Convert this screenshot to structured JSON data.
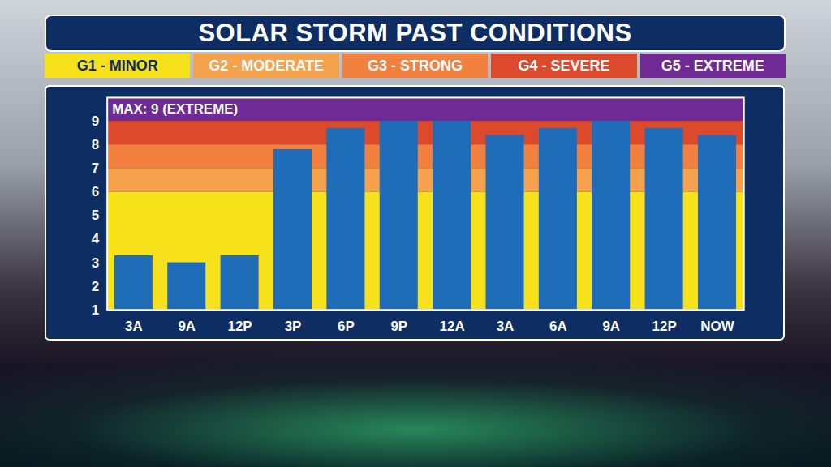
{
  "chart_data": {
    "type": "bar",
    "title": "SOLAR STORM PAST CONDITIONS",
    "categories": [
      "3A",
      "9A",
      "12P",
      "3P",
      "6P",
      "9P",
      "12A",
      "3A",
      "6A",
      "9A",
      "12P",
      "NOW"
    ],
    "values": [
      3.3,
      3,
      3.3,
      7.8,
      8.7,
      9,
      9,
      8.4,
      8.7,
      9,
      8.7,
      8.4
    ],
    "color": "#1f6db8",
    "ylim": [
      1,
      10
    ],
    "yticks": [
      1,
      2,
      3,
      4,
      5,
      6,
      7,
      8,
      9
    ],
    "annotation": "MAX: 9 (EXTREME)",
    "legend": "top",
    "bands": [
      {
        "name": "G1 - MINOR",
        "color": "#f7e11b",
        "from": 1,
        "to": 6
      },
      {
        "name": "G2 - MODERATE",
        "color": "#f6a24c",
        "from": 6,
        "to": 7
      },
      {
        "name": "G3 - STRONG",
        "color": "#f2803f",
        "from": 7,
        "to": 8
      },
      {
        "name": "G4 - SEVERE",
        "color": "#dd4a2b",
        "from": 8,
        "to": 9
      },
      {
        "name": "G5 - EXTREME",
        "color": "#6f2a95",
        "from": 9,
        "to": 10
      }
    ]
  }
}
